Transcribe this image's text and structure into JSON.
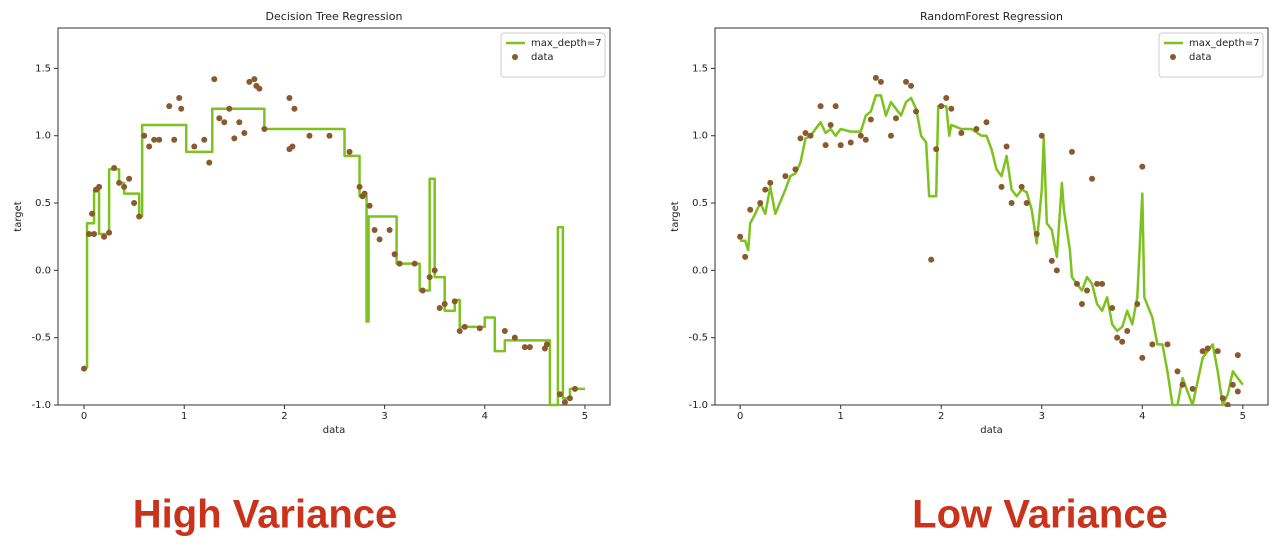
{
  "chart_data": [
    {
      "type": "line",
      "title": "Decision Tree Regression",
      "xlabel": "data",
      "ylabel": "target",
      "annotation": "High Variance",
      "xlim": [
        -0.26,
        5.25
      ],
      "ylim": [
        -1.0,
        1.8
      ],
      "xticks": [
        0,
        1,
        2,
        3,
        4,
        5
      ],
      "yticks": [
        {
          "value": -1.0,
          "label": "-1.0"
        },
        -0.5,
        {
          "value": 0.0,
          "label": "0.0"
        },
        0.5,
        {
          "value": 1.0,
          "label": "1.0"
        },
        1.5
      ],
      "legend": "upper right",
      "series": [
        {
          "name": "max_depth=7",
          "color": "#7dc21e",
          "x": [
            0,
            0.03,
            0.03,
            0.1,
            0.1,
            0.15,
            0.15,
            0.25,
            0.25,
            0.35,
            0.35,
            0.4,
            0.4,
            0.55,
            0.55,
            0.58,
            0.58,
            1.02,
            1.02,
            1.28,
            1.28,
            1.8,
            1.8,
            2.6,
            2.6,
            2.75,
            2.75,
            2.82,
            2.82,
            2.84,
            2.84,
            3.12,
            3.12,
            3.35,
            3.35,
            3.45,
            3.45,
            3.5,
            3.5,
            3.6,
            3.6,
            3.7,
            3.7,
            3.75,
            3.75,
            4.0,
            4.0,
            4.1,
            4.1,
            4.2,
            4.2,
            4.65,
            4.65,
            4.73,
            4.73,
            4.78,
            4.78,
            4.85,
            4.85,
            5
          ],
          "values": [
            -0.72,
            -0.72,
            0.35,
            0.35,
            0.6,
            0.6,
            0.27,
            0.27,
            0.75,
            0.75,
            0.65,
            0.65,
            0.57,
            0.57,
            0.4,
            0.4,
            1.08,
            1.08,
            0.88,
            0.88,
            1.2,
            1.2,
            1.05,
            1.05,
            0.85,
            0.85,
            0.55,
            0.55,
            -0.38,
            -0.38,
            0.4,
            0.4,
            0.05,
            0.05,
            -0.15,
            -0.15,
            0.68,
            0.68,
            -0.05,
            -0.05,
            -0.3,
            -0.3,
            -0.22,
            -0.22,
            -0.42,
            -0.42,
            -0.35,
            -0.35,
            -0.6,
            -0.6,
            -0.52,
            -0.52,
            -1.0,
            -1.0,
            0.32,
            0.32,
            -0.95,
            -0.95,
            -0.88,
            -0.88
          ]
        },
        {
          "name": "data",
          "type": "scatter",
          "color": "#8a5a2e",
          "x": [
            0,
            0.05,
            0.08,
            0.1,
            0.12,
            0.15,
            0.2,
            0.25,
            0.3,
            0.35,
            0.4,
            0.45,
            0.5,
            0.55,
            0.6,
            0.65,
            0.7,
            0.75,
            0.85,
            0.9,
            0.95,
            0.97,
            1.1,
            1.2,
            1.25,
            1.3,
            1.35,
            1.4,
            1.45,
            1.5,
            1.55,
            1.6,
            1.65,
            1.7,
            1.72,
            1.75,
            1.8,
            2.05,
            2.05,
            2.08,
            2.1,
            2.25,
            2.45,
            2.65,
            2.75,
            2.78,
            2.8,
            2.85,
            2.9,
            2.95,
            3.05,
            3.1,
            3.15,
            3.3,
            3.38,
            3.45,
            3.5,
            3.55,
            3.6,
            3.7,
            3.75,
            3.8,
            3.95,
            4.2,
            4.3,
            4.4,
            4.45,
            4.6,
            4.62,
            4.75,
            4.8,
            4.85,
            4.9
          ],
          "values": [
            -0.73,
            0.27,
            0.42,
            0.27,
            0.6,
            0.62,
            0.25,
            0.28,
            0.76,
            0.65,
            0.62,
            0.68,
            0.5,
            0.4,
            1.0,
            0.92,
            0.97,
            0.97,
            1.22,
            0.97,
            1.28,
            1.2,
            0.92,
            0.97,
            0.8,
            1.42,
            1.13,
            1.1,
            1.2,
            0.98,
            1.1,
            1.02,
            1.4,
            1.42,
            1.37,
            1.35,
            1.05,
            1.28,
            0.9,
            0.92,
            1.2,
            1.0,
            1.0,
            0.88,
            0.62,
            0.55,
            0.57,
            0.48,
            0.3,
            0.23,
            0.3,
            0.12,
            0.05,
            0.05,
            -0.15,
            -0.05,
            0.0,
            -0.28,
            -0.25,
            -0.23,
            -0.45,
            -0.42,
            -0.43,
            -0.45,
            -0.5,
            -0.57,
            -0.57,
            -0.58,
            -0.55,
            -0.92,
            -0.98,
            -0.95,
            -0.88
          ]
        }
      ]
    },
    {
      "type": "line",
      "title": "RandomForest Regression",
      "xlabel": "data",
      "ylabel": "target",
      "annotation": "Low Variance",
      "xlim": [
        -0.25,
        5.25
      ],
      "ylim": [
        -1.0,
        1.8
      ],
      "xticks": [
        0,
        1,
        2,
        3,
        4,
        5
      ],
      "yticks": [
        {
          "value": -1.0,
          "label": "-1.0"
        },
        -0.5,
        {
          "value": 0.0,
          "label": "0.0"
        },
        0.5,
        {
          "value": 1.0,
          "label": "1.0"
        },
        1.5
      ],
      "legend": "upper right",
      "series": [
        {
          "name": "max_depth=7",
          "color": "#7dc21e",
          "x": [
            0,
            0.05,
            0.08,
            0.1,
            0.15,
            0.2,
            0.25,
            0.3,
            0.35,
            0.45,
            0.5,
            0.55,
            0.6,
            0.65,
            0.7,
            0.75,
            0.8,
            0.85,
            0.9,
            0.95,
            1.0,
            1.1,
            1.2,
            1.25,
            1.3,
            1.35,
            1.4,
            1.45,
            1.5,
            1.55,
            1.6,
            1.65,
            1.7,
            1.75,
            1.8,
            1.85,
            1.88,
            1.95,
            1.97,
            2.05,
            2.08,
            2.1,
            2.2,
            2.3,
            2.4,
            2.45,
            2.5,
            2.55,
            2.6,
            2.65,
            2.7,
            2.75,
            2.8,
            2.85,
            2.9,
            2.95,
            3.0,
            3.02,
            3.05,
            3.1,
            3.15,
            3.2,
            3.22,
            3.28,
            3.3,
            3.35,
            3.4,
            3.45,
            3.5,
            3.55,
            3.6,
            3.65,
            3.7,
            3.75,
            3.8,
            3.85,
            3.9,
            3.95,
            4.0,
            4.02,
            4.1,
            4.15,
            4.2,
            4.25,
            4.3,
            4.35,
            4.4,
            4.45,
            4.5,
            4.6,
            4.65,
            4.7,
            4.75,
            4.8,
            4.85,
            4.9,
            4.95,
            5
          ],
          "values": [
            0.22,
            0.22,
            0.15,
            0.35,
            0.42,
            0.5,
            0.42,
            0.62,
            0.42,
            0.6,
            0.7,
            0.72,
            0.8,
            0.98,
            1.0,
            1.05,
            1.1,
            1.02,
            1.05,
            1.0,
            1.05,
            1.03,
            1.03,
            1.15,
            1.18,
            1.3,
            1.3,
            1.15,
            1.25,
            1.2,
            1.15,
            1.25,
            1.28,
            1.2,
            1.0,
            0.95,
            0.55,
            0.55,
            1.22,
            1.22,
            1.0,
            1.08,
            1.05,
            1.05,
            1.0,
            1.0,
            0.9,
            0.75,
            0.7,
            0.85,
            0.6,
            0.55,
            0.6,
            0.58,
            0.45,
            0.2,
            0.6,
            0.98,
            0.35,
            0.3,
            0.1,
            0.65,
            0.45,
            0.15,
            -0.05,
            -0.1,
            -0.15,
            -0.05,
            -0.1,
            -0.25,
            -0.3,
            -0.2,
            -0.4,
            -0.45,
            -0.42,
            -0.3,
            -0.4,
            -0.2,
            0.57,
            -0.2,
            -0.35,
            -0.55,
            -0.55,
            -0.75,
            -1.0,
            -1.0,
            -0.8,
            -0.9,
            -1.0,
            -0.65,
            -0.6,
            -0.55,
            -0.75,
            -1.0,
            -0.92,
            -0.75,
            -0.8,
            -0.85
          ]
        },
        {
          "name": "data",
          "type": "scatter",
          "color": "#8a5a2e",
          "x": [
            0,
            0.05,
            0.1,
            0.2,
            0.25,
            0.3,
            0.45,
            0.55,
            0.6,
            0.65,
            0.7,
            0.8,
            0.85,
            0.9,
            0.95,
            1.0,
            1.1,
            1.2,
            1.25,
            1.3,
            1.35,
            1.4,
            1.5,
            1.55,
            1.65,
            1.7,
            1.75,
            1.9,
            1.95,
            2.0,
            2.05,
            2.1,
            2.2,
            2.35,
            2.45,
            2.6,
            2.65,
            2.7,
            2.8,
            2.85,
            2.95,
            3.0,
            3.1,
            3.15,
            3.3,
            3.35,
            3.4,
            3.45,
            3.5,
            3.55,
            3.6,
            3.7,
            3.75,
            3.8,
            3.85,
            3.95,
            4.0,
            4.0,
            4.1,
            4.25,
            4.35,
            4.4,
            4.5,
            4.6,
            4.65,
            4.75,
            4.8,
            4.85,
            4.9,
            4.95,
            4.95
          ],
          "values": [
            0.25,
            0.1,
            0.45,
            0.5,
            0.6,
            0.65,
            0.7,
            0.75,
            0.98,
            1.02,
            1.0,
            1.22,
            0.93,
            1.08,
            1.22,
            0.93,
            0.95,
            1.0,
            0.97,
            1.12,
            1.43,
            1.4,
            1.0,
            1.13,
            1.4,
            1.37,
            1.18,
            0.08,
            0.9,
            1.22,
            1.28,
            1.2,
            1.02,
            1.05,
            1.1,
            0.62,
            0.92,
            0.5,
            0.62,
            0.5,
            0.27,
            1.0,
            0.07,
            0.0,
            0.88,
            -0.1,
            -0.25,
            -0.15,
            0.68,
            -0.1,
            -0.1,
            -0.28,
            -0.5,
            -0.53,
            -0.45,
            -0.25,
            0.77,
            -0.65,
            -0.55,
            -0.55,
            -0.75,
            -0.85,
            -0.88,
            -0.6,
            -0.58,
            -0.6,
            -0.95,
            -1.0,
            -0.85,
            -0.63,
            -0.9
          ]
        }
      ]
    }
  ]
}
